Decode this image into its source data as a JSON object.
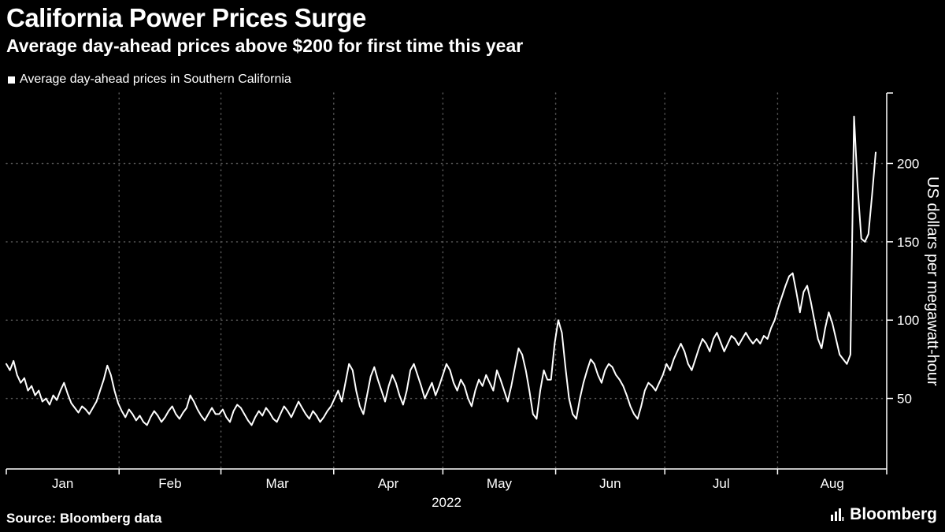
{
  "header": {
    "title": "California Power Prices Surge",
    "subtitle": "Average day-ahead prices above $200 for first time this year"
  },
  "legend": {
    "label": "Average day-ahead prices in Southern California"
  },
  "footer": {
    "source": "Source: Bloomberg data",
    "brand": "Bloomberg"
  },
  "colors": {
    "background": "#000000",
    "line": "#ffffff",
    "grid": "#565656",
    "text": "#ffffff"
  },
  "chart_data": {
    "type": "line",
    "title": "California Power Prices Surge",
    "subtitle": "Average day-ahead prices above $200 for first time this year",
    "series_name": "Average day-ahead prices in Southern California",
    "ylabel": "US dollars per megawatt-hour",
    "year_label": "2022",
    "frequency": "daily",
    "month_labels": [
      "Jan",
      "Feb",
      "Mar",
      "Apr",
      "May",
      "Jun",
      "Jul",
      "Aug"
    ],
    "month_lengths": [
      31,
      28,
      31,
      30,
      31,
      30,
      31,
      30
    ],
    "yticks": [
      50,
      100,
      150,
      200
    ],
    "ylim": [
      5,
      245
    ],
    "grid": true,
    "legend_position": "top-left",
    "axis_position": "right",
    "values": [
      72,
      68,
      74,
      65,
      60,
      63,
      55,
      58,
      52,
      55,
      48,
      50,
      46,
      52,
      49,
      55,
      60,
      53,
      47,
      44,
      41,
      45,
      43,
      40,
      44,
      48,
      55,
      62,
      71,
      65,
      55,
      47,
      42,
      38,
      43,
      40,
      36,
      39,
      35,
      33,
      38,
      42,
      39,
      35,
      38,
      42,
      45,
      40,
      37,
      41,
      44,
      52,
      48,
      43,
      39,
      36,
      40,
      44,
      40,
      40,
      43,
      38,
      35,
      42,
      46,
      44,
      40,
      36,
      33,
      38,
      42,
      39,
      44,
      41,
      37,
      35,
      40,
      45,
      42,
      38,
      43,
      48,
      44,
      40,
      37,
      42,
      39,
      35,
      38,
      42,
      45,
      50,
      55,
      48,
      60,
      72,
      68,
      55,
      45,
      40,
      52,
      64,
      70,
      62,
      55,
      48,
      58,
      65,
      60,
      52,
      46,
      55,
      68,
      72,
      65,
      58,
      50,
      55,
      60,
      52,
      58,
      65,
      72,
      68,
      60,
      55,
      62,
      58,
      50,
      45,
      55,
      62,
      58,
      65,
      60,
      55,
      68,
      62,
      55,
      48,
      58,
      70,
      82,
      78,
      68,
      55,
      40,
      37,
      55,
      68,
      62,
      62,
      85,
      100,
      92,
      70,
      50,
      40,
      37,
      50,
      60,
      68,
      75,
      72,
      65,
      60,
      68,
      72,
      70,
      65,
      62,
      58,
      52,
      45,
      40,
      37,
      45,
      55,
      60,
      58,
      55,
      60,
      65,
      72,
      68,
      75,
      80,
      85,
      80,
      72,
      68,
      75,
      82,
      88,
      85,
      80,
      88,
      92,
      86,
      80,
      85,
      90,
      88,
      84,
      88,
      92,
      88,
      85,
      88,
      85,
      90,
      88,
      95,
      100,
      108,
      115,
      122,
      128,
      130,
      118,
      105,
      118,
      122,
      112,
      100,
      88,
      82,
      95,
      105,
      98,
      88,
      78,
      75,
      72,
      78,
      230,
      185,
      152,
      150,
      155,
      180,
      207
    ]
  }
}
